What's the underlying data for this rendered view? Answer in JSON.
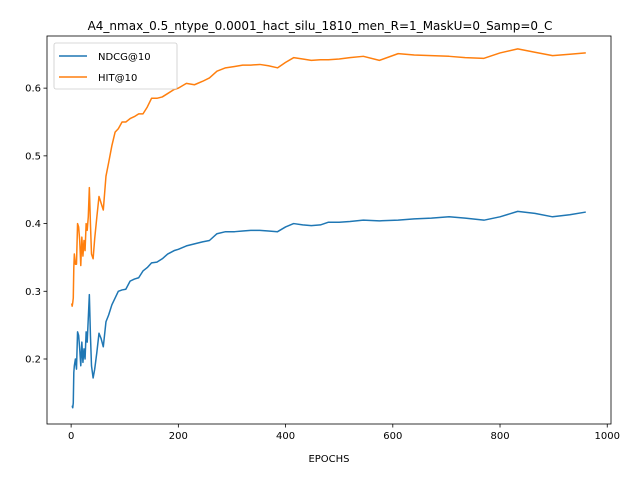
{
  "chart_data": {
    "type": "line",
    "title": "A4_nmax_0.5_ntype_0.0001_hact_silu_1810_men_R=1_MaskU=0_Samp=0_C",
    "xlabel": "EPOCHS",
    "ylabel": "",
    "xlim": [
      -45,
      1007
    ],
    "ylim": [
      0.104,
      0.677
    ],
    "xticks": [
      0,
      200,
      400,
      600,
      800,
      1000
    ],
    "yticks": [
      0.2,
      0.3,
      0.4,
      0.5,
      0.6
    ],
    "xtick_labels": [
      "0",
      "200",
      "400",
      "600",
      "800",
      "1000"
    ],
    "ytick_labels": [
      "0.2",
      "0.3",
      "0.4",
      "0.5",
      "0.6"
    ],
    "legend_position": "upper-left",
    "grid": false,
    "series": [
      {
        "name": "NDCG@10",
        "color": "#1f77b4",
        "x": [
          1,
          2,
          3,
          4,
          5,
          6,
          8,
          10,
          12,
          14,
          16,
          18,
          20,
          22,
          24,
          26,
          28,
          30,
          32,
          34,
          36,
          38,
          41,
          44,
          48,
          52,
          56,
          60,
          65,
          70,
          76,
          82,
          88,
          95,
          102,
          110,
          118,
          126,
          134,
          142,
          150,
          160,
          170,
          180,
          192,
          200,
          215,
          230,
          245,
          258,
          272,
          288,
          305,
          320,
          335,
          352,
          368,
          385,
          400,
          415,
          432,
          448,
          465,
          480,
          500,
          520,
          545,
          575,
          610,
          640,
          672,
          705,
          735,
          770,
          800,
          833,
          865,
          898,
          930,
          960
        ],
        "y": [
          0.13,
          0.13,
          0.128,
          0.135,
          0.18,
          0.19,
          0.2,
          0.185,
          0.24,
          0.235,
          0.215,
          0.19,
          0.225,
          0.195,
          0.215,
          0.2,
          0.24,
          0.225,
          0.26,
          0.295,
          0.235,
          0.19,
          0.172,
          0.185,
          0.21,
          0.238,
          0.23,
          0.218,
          0.255,
          0.265,
          0.28,
          0.29,
          0.3,
          0.302,
          0.303,
          0.315,
          0.318,
          0.32,
          0.33,
          0.335,
          0.342,
          0.343,
          0.348,
          0.355,
          0.36,
          0.362,
          0.367,
          0.37,
          0.373,
          0.375,
          0.385,
          0.388,
          0.388,
          0.389,
          0.39,
          0.39,
          0.389,
          0.388,
          0.395,
          0.4,
          0.398,
          0.397,
          0.398,
          0.402,
          0.402,
          0.403,
          0.405,
          0.404,
          0.405,
          0.407,
          0.408,
          0.41,
          0.408,
          0.405,
          0.41,
          0.418,
          0.415,
          0.41,
          0.413,
          0.417
        ]
      },
      {
        "name": "HIT@10",
        "color": "#ff7f0e",
        "x": [
          1,
          2,
          3,
          4,
          5,
          6,
          8,
          10,
          12,
          14,
          16,
          18,
          20,
          22,
          24,
          26,
          28,
          30,
          32,
          34,
          36,
          38,
          41,
          44,
          48,
          52,
          56,
          60,
          65,
          70,
          76,
          82,
          88,
          95,
          102,
          110,
          118,
          126,
          134,
          142,
          150,
          160,
          170,
          180,
          192,
          200,
          215,
          230,
          245,
          258,
          272,
          288,
          305,
          320,
          335,
          352,
          368,
          385,
          400,
          415,
          432,
          448,
          465,
          480,
          500,
          520,
          545,
          575,
          610,
          640,
          672,
          705,
          735,
          770,
          800,
          833,
          865,
          898,
          930,
          960
        ],
        "y": [
          0.282,
          0.278,
          0.283,
          0.29,
          0.335,
          0.355,
          0.34,
          0.34,
          0.4,
          0.395,
          0.375,
          0.338,
          0.38,
          0.352,
          0.375,
          0.36,
          0.4,
          0.39,
          0.41,
          0.453,
          0.4,
          0.355,
          0.348,
          0.378,
          0.41,
          0.44,
          0.43,
          0.42,
          0.47,
          0.49,
          0.515,
          0.535,
          0.54,
          0.55,
          0.55,
          0.555,
          0.558,
          0.562,
          0.562,
          0.572,
          0.585,
          0.585,
          0.587,
          0.592,
          0.598,
          0.6,
          0.607,
          0.605,
          0.61,
          0.615,
          0.625,
          0.63,
          0.632,
          0.634,
          0.634,
          0.635,
          0.633,
          0.63,
          0.638,
          0.645,
          0.643,
          0.641,
          0.642,
          0.642,
          0.643,
          0.645,
          0.647,
          0.641,
          0.651,
          0.649,
          0.648,
          0.647,
          0.645,
          0.644,
          0.652,
          0.658,
          0.653,
          0.648,
          0.65,
          0.652
        ]
      }
    ]
  }
}
